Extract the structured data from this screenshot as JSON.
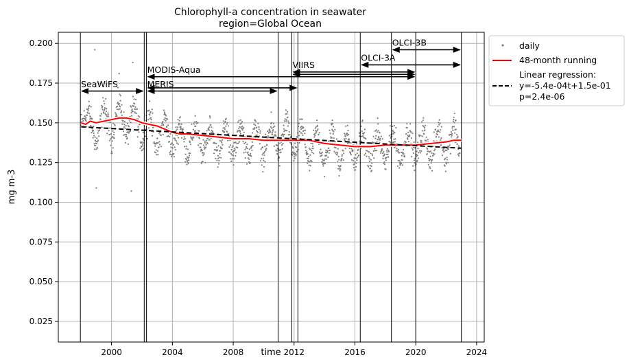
{
  "chart_data": {
    "type": "scatter",
    "title": "Chlorophyll-a concentration in seawater",
    "subtitle": "region=Global Ocean",
    "xlabel": "time",
    "ylabel": "mg m-3",
    "xlim": [
      1996.5,
      2024.5
    ],
    "ylim": [
      0.012,
      0.207
    ],
    "grid": true,
    "x_ticks": [
      2000,
      2004,
      2008,
      2012,
      2016,
      2020,
      2024
    ],
    "x_tick_labels": [
      "2000",
      "2004",
      "2008",
      "2012",
      "2016",
      "2020",
      "2024"
    ],
    "y_ticks": [
      0.025,
      0.05,
      0.075,
      0.1,
      0.125,
      0.15,
      0.175,
      0.2
    ],
    "y_tick_labels": [
      "0.025",
      "0.050",
      "0.075",
      "0.100",
      "0.125",
      "0.150",
      "0.175",
      "0.200"
    ],
    "legend_position": "outside-top-right",
    "legend": {
      "daily": "daily",
      "running": "48-month running",
      "regression_line1": "Linear regression:",
      "regression_line2": "y=-5.4e-04t+1.5e-01",
      "regression_line3": "p=2.4e-06"
    },
    "series": [
      {
        "name": "daily",
        "style": "grey dots",
        "color": "#808080",
        "description_stats": {
          "seasonal_amplitude": 0.012,
          "start": 1997.9,
          "end": 2023.0
        },
        "sampled_points": [
          [
            1998.0,
            0.148
          ],
          [
            1998.5,
            0.158
          ],
          [
            1999.0,
            0.135
          ],
          [
            1999.5,
            0.162
          ],
          [
            2000.0,
            0.138
          ],
          [
            2000.5,
            0.165
          ],
          [
            2001.0,
            0.14
          ],
          [
            2001.5,
            0.162
          ],
          [
            2002.0,
            0.136
          ],
          [
            2002.5,
            0.158
          ],
          [
            2003.0,
            0.132
          ],
          [
            2003.5,
            0.155
          ],
          [
            2004.0,
            0.13
          ],
          [
            2004.5,
            0.152
          ],
          [
            2005.0,
            0.128
          ],
          [
            2005.5,
            0.15
          ],
          [
            2006.0,
            0.128
          ],
          [
            2006.5,
            0.15
          ],
          [
            2007.0,
            0.127
          ],
          [
            2007.5,
            0.15
          ],
          [
            2008.0,
            0.127
          ],
          [
            2008.5,
            0.15
          ],
          [
            2009.0,
            0.127
          ],
          [
            2009.5,
            0.149
          ],
          [
            2010.0,
            0.127
          ],
          [
            2010.5,
            0.15
          ],
          [
            2011.0,
            0.128
          ],
          [
            2011.5,
            0.152
          ],
          [
            2012.0,
            0.128
          ],
          [
            2012.5,
            0.148
          ],
          [
            2013.0,
            0.124
          ],
          [
            2013.5,
            0.146
          ],
          [
            2014.0,
            0.123
          ],
          [
            2014.5,
            0.146
          ],
          [
            2015.0,
            0.123
          ],
          [
            2015.5,
            0.145
          ],
          [
            2016.0,
            0.123
          ],
          [
            2016.5,
            0.146
          ],
          [
            2017.0,
            0.123
          ],
          [
            2017.5,
            0.145
          ],
          [
            2018.0,
            0.124
          ],
          [
            2018.5,
            0.146
          ],
          [
            2019.0,
            0.124
          ],
          [
            2019.5,
            0.147
          ],
          [
            2020.0,
            0.125
          ],
          [
            2020.5,
            0.147
          ],
          [
            2021.0,
            0.125
          ],
          [
            2021.5,
            0.148
          ],
          [
            2022.0,
            0.126
          ],
          [
            2022.5,
            0.152
          ],
          [
            2022.9,
            0.13
          ]
        ]
      },
      {
        "name": "48-month running",
        "color": "#ff0000",
        "x": [
          1998.0,
          1998.3,
          1998.6,
          1999.0,
          1999.5,
          2000.0,
          2000.5,
          2001.0,
          2001.5,
          2002.0,
          2002.5,
          2003.0,
          2003.5,
          2004.0,
          2004.5,
          2005.0,
          2006.0,
          2007.0,
          2008.0,
          2009.0,
          2010.0,
          2011.0,
          2012.0,
          2013.0,
          2014.0,
          2015.0,
          2016.0,
          2017.0,
          2018.0,
          2019.0,
          2020.0,
          2021.0,
          2022.0,
          2022.5,
          2023.0
        ],
        "y": [
          0.15,
          0.149,
          0.151,
          0.15,
          0.151,
          0.152,
          0.153,
          0.153,
          0.152,
          0.15,
          0.149,
          0.148,
          0.146,
          0.144,
          0.143,
          0.143,
          0.142,
          0.141,
          0.14,
          0.14,
          0.139,
          0.139,
          0.139,
          0.139,
          0.137,
          0.136,
          0.135,
          0.135,
          0.136,
          0.136,
          0.136,
          0.137,
          0.138,
          0.139,
          0.139
        ]
      },
      {
        "name": "Linear regression",
        "color": "#000000",
        "style": "dashed",
        "x": [
          1998.0,
          2023.0
        ],
        "y": [
          0.1475,
          0.134
        ]
      }
    ],
    "vertical_lines": [
      1997.95,
      2002.15,
      2002.3,
      2010.95,
      2011.85,
      2012.25,
      2016.35,
      2018.4,
      2020.0,
      2023.0
    ],
    "sensors": [
      {
        "name": "SeaWiFS",
        "start": 1997.95,
        "end": 2002.15,
        "y": 0.17,
        "label_y": 0.1725
      },
      {
        "name": "MERIS",
        "start": 2002.3,
        "end": 2010.95,
        "y": 0.17,
        "label_y": 0.1725
      },
      {
        "name": "MODIS-Aqua",
        "start": 2002.3,
        "end": 2020.0,
        "y": 0.179,
        "label_y": 0.1815
      },
      {
        "name": "VIIRS",
        "start": 2011.85,
        "end": 2020.0,
        "y": 0.182,
        "label_y": 0.1845
      },
      {
        "name": "OLCI-3A",
        "start": 2016.35,
        "end": 2023.0,
        "y": 0.1865,
        "label_y": 0.189
      },
      {
        "name": "OLCI-3B",
        "start": 2018.4,
        "end": 2023.0,
        "y": 0.196,
        "label_y": 0.1985
      }
    ],
    "extra_segments": [
      {
        "start": 2002.3,
        "end": 2012.25,
        "y": 0.172
      },
      {
        "start": 2011.85,
        "end": 2020.0,
        "y": 0.1805
      }
    ]
  }
}
